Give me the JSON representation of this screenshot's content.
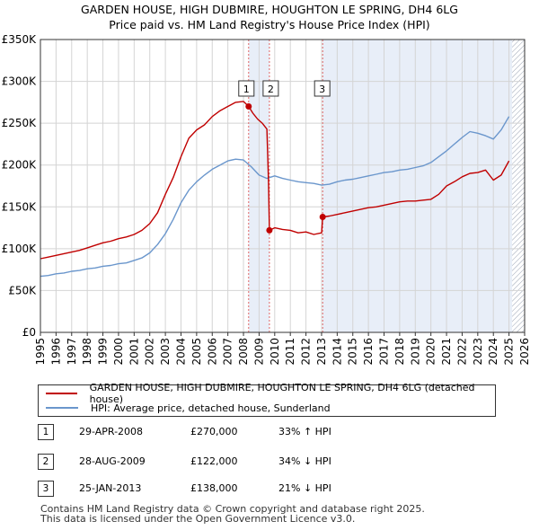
{
  "title": {
    "line1": "GARDEN HOUSE, HIGH DUBMIRE, HOUGHTON LE SPRING, DH4 6LG",
    "line2": "Price paid vs. HM Land Registry's House Price Index (HPI)"
  },
  "colors": {
    "property": "#c00000",
    "hpi": "#6a96cc",
    "shade": "#e8eef8",
    "grid": "#d4d4d4",
    "marker_line": "#e06666"
  },
  "legend": {
    "property_label": "GARDEN HOUSE, HIGH DUBMIRE, HOUGHTON LE SPRING, DH4 6LG (detached house)",
    "hpi_label": "HPI: Average price, detached house, Sunderland"
  },
  "sales": [
    {
      "num": "1",
      "date": "29-APR-2008",
      "price": "£270,000",
      "hpi": "33% ↑ HPI"
    },
    {
      "num": "2",
      "date": "28-AUG-2009",
      "price": "£122,000",
      "hpi": "34% ↓ HPI"
    },
    {
      "num": "3",
      "date": "25-JAN-2013",
      "price": "£138,000",
      "hpi": "21% ↓ HPI"
    }
  ],
  "footer": {
    "line1": "Contains HM Land Registry data © Crown copyright and database right 2025.",
    "line2": "This data is licensed under the Open Government Licence v3.0."
  },
  "chart_data": {
    "type": "line",
    "title": "GARDEN HOUSE, HIGH DUBMIRE, HOUGHTON LE SPRING, DH4 6LG — Price paid vs. HM Land Registry's House Price Index (HPI)",
    "xlabel": "",
    "ylabel": "",
    "xlim": [
      1995,
      2026
    ],
    "ylim": [
      0,
      350000
    ],
    "y_ticks": [
      {
        "value": 0,
        "label": "£0"
      },
      {
        "value": 50000,
        "label": "£50K"
      },
      {
        "value": 100000,
        "label": "£100K"
      },
      {
        "value": 150000,
        "label": "£150K"
      },
      {
        "value": 200000,
        "label": "£200K"
      },
      {
        "value": 250000,
        "label": "£250K"
      },
      {
        "value": 300000,
        "label": "£300K"
      },
      {
        "value": 350000,
        "label": "£350K"
      }
    ],
    "x_ticks": [
      "1995",
      "1996",
      "1997",
      "1998",
      "1999",
      "2000",
      "2001",
      "2002",
      "2003",
      "2004",
      "2005",
      "2006",
      "2007",
      "2008",
      "2009",
      "2010",
      "2011",
      "2012",
      "2013",
      "2014",
      "2015",
      "2016",
      "2017",
      "2018",
      "2019",
      "2020",
      "2021",
      "2022",
      "2023",
      "2024",
      "2025",
      "2026"
    ],
    "grid": true,
    "shaded_spans": [
      {
        "from": 2008.33,
        "to": 2009.66
      },
      {
        "from": 2013.07,
        "to": 2025.2
      }
    ],
    "hatched_after": 2025.2,
    "markers": [
      {
        "label": "1",
        "x": 2008.33,
        "y": 270000
      },
      {
        "label": "2",
        "x": 2009.66,
        "y": 122000
      },
      {
        "label": "3",
        "x": 2013.07,
        "y": 138000
      }
    ],
    "series": [
      {
        "name": "GARDEN HOUSE, HIGH DUBMIRE, HOUGHTON LE SPRING, DH4 6LG (detached house)",
        "color": "#c00000",
        "x": [
          1995.0,
          1995.5,
          1996.0,
          1996.5,
          1997.0,
          1997.5,
          1998.0,
          1998.5,
          1999.0,
          1999.5,
          2000.0,
          2000.5,
          2001.0,
          2001.5,
          2002.0,
          2002.5,
          2003.0,
          2003.5,
          2004.0,
          2004.5,
          2005.0,
          2005.5,
          2006.0,
          2006.5,
          2007.0,
          2007.5,
          2008.0,
          2008.33,
          2008.6,
          2008.9,
          2009.2,
          2009.5,
          2009.6,
          2009.66,
          2010.0,
          2010.5,
          2011.0,
          2011.5,
          2012.0,
          2012.5,
          2013.0,
          2013.07,
          2013.5,
          2014.0,
          2014.5,
          2015.0,
          2015.5,
          2016.0,
          2016.5,
          2017.0,
          2017.5,
          2018.0,
          2018.5,
          2019.0,
          2019.5,
          2020.0,
          2020.5,
          2021.0,
          2021.5,
          2022.0,
          2022.5,
          2023.0,
          2023.5,
          2024.0,
          2024.5,
          2025.0
        ],
        "y": [
          88000,
          90000,
          92000,
          94000,
          96000,
          98000,
          101000,
          104000,
          107000,
          109000,
          112000,
          114000,
          117000,
          122000,
          130000,
          143000,
          165000,
          185000,
          210000,
          232000,
          242000,
          248000,
          258000,
          265000,
          270000,
          275000,
          276000,
          270000,
          262000,
          255000,
          250000,
          243000,
          180000,
          122000,
          125000,
          123000,
          122000,
          119000,
          120000,
          117000,
          119000,
          138000,
          139000,
          141000,
          143000,
          145000,
          147000,
          149000,
          150000,
          152000,
          154000,
          156000,
          157000,
          157000,
          158000,
          159000,
          165000,
          175000,
          180000,
          186000,
          190000,
          191000,
          194000,
          182000,
          188000,
          205000
        ]
      },
      {
        "name": "HPI: Average price, detached house, Sunderland",
        "color": "#6a96cc",
        "x": [
          1995.0,
          1995.5,
          1996.0,
          1996.5,
          1997.0,
          1997.5,
          1998.0,
          1998.5,
          1999.0,
          1999.5,
          2000.0,
          2000.5,
          2001.0,
          2001.5,
          2002.0,
          2002.5,
          2003.0,
          2003.5,
          2004.0,
          2004.5,
          2005.0,
          2005.5,
          2006.0,
          2006.5,
          2007.0,
          2007.5,
          2008.0,
          2008.5,
          2009.0,
          2009.5,
          2010.0,
          2010.5,
          2011.0,
          2011.5,
          2012.0,
          2012.5,
          2013.0,
          2013.5,
          2014.0,
          2014.5,
          2015.0,
          2015.5,
          2016.0,
          2016.5,
          2017.0,
          2017.5,
          2018.0,
          2018.5,
          2019.0,
          2019.5,
          2020.0,
          2020.5,
          2021.0,
          2021.5,
          2022.0,
          2022.5,
          2023.0,
          2023.5,
          2024.0,
          2024.5,
          2025.0
        ],
        "y": [
          67000,
          68000,
          70000,
          71000,
          73000,
          74000,
          76000,
          77000,
          79000,
          80000,
          82000,
          83000,
          86000,
          89000,
          95000,
          105000,
          118000,
          135000,
          155000,
          170000,
          180000,
          188000,
          195000,
          200000,
          205000,
          207000,
          206000,
          198000,
          188000,
          184000,
          187000,
          184000,
          182000,
          180000,
          179000,
          178000,
          176000,
          177000,
          180000,
          182000,
          183000,
          185000,
          187000,
          189000,
          191000,
          192000,
          194000,
          195000,
          197000,
          199000,
          203000,
          210000,
          217000,
          225000,
          233000,
          240000,
          238000,
          235000,
          231000,
          242000,
          258000
        ]
      }
    ]
  }
}
